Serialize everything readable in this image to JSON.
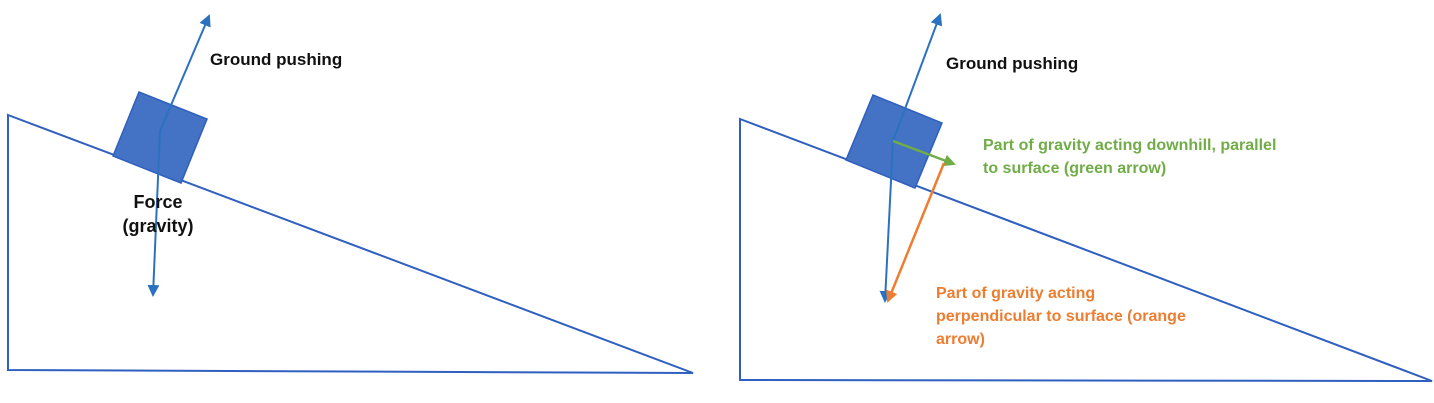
{
  "colors": {
    "outline": "#2f5fbf",
    "block": "#4472c4",
    "vector_blue": "#2a72c0",
    "vector_green": "#70ad47",
    "vector_orange": "#ed7d31",
    "text_black": "#111111"
  },
  "left_diagram": {
    "normal_label": "Ground pushing",
    "gravity_label_line1": "Force",
    "gravity_label_line2": "(gravity)"
  },
  "right_diagram": {
    "normal_label": "Ground pushing",
    "parallel_label_line1": "Part of gravity acting downhill, parallel",
    "parallel_label_line2": "to surface (green arrow)",
    "perpendicular_label_line1": "Part of gravity acting",
    "perpendicular_label_line2": "perpendicular to surface (orange",
    "perpendicular_label_line3": "arrow)"
  }
}
